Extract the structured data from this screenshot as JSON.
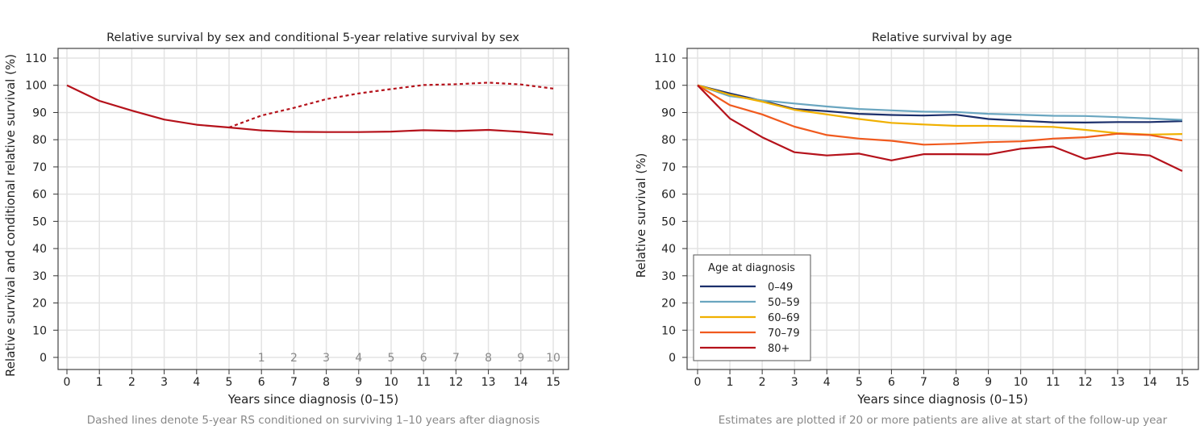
{
  "chart_data": [
    {
      "type": "line",
      "title": "Relative survival by sex and conditional 5-year relative survival by sex",
      "xlabel": "Years since diagnosis (0–15)",
      "ylabel": "Relative survival and conditional relative survival (%)",
      "note": "Dashed lines denote 5-year RS conditioned on surviving 1–10 years after diagnosis",
      "xlim": [
        0,
        15
      ],
      "ylim": [
        0,
        110
      ],
      "xticks": [
        0,
        1,
        2,
        3,
        4,
        5,
        6,
        7,
        8,
        9,
        10,
        11,
        12,
        13,
        14,
        15
      ],
      "yticks": [
        0,
        10,
        20,
        30,
        40,
        50,
        60,
        70,
        80,
        90,
        100,
        110
      ],
      "secondary_xtick_labels": {
        "x": [
          6,
          7,
          8,
          9,
          10,
          11,
          12,
          13,
          14,
          15
        ],
        "labels": [
          "1",
          "2",
          "3",
          "4",
          "5",
          "6",
          "7",
          "8",
          "9",
          "10"
        ]
      },
      "grid": true,
      "series": [
        {
          "style": "solid",
          "color": "#b5121b",
          "x": [
            0,
            1,
            2,
            3,
            4,
            5,
            6,
            7,
            8,
            9,
            10,
            11,
            12,
            13,
            14,
            15
          ],
          "y": [
            100,
            94.3,
            90.7,
            87.4,
            85.5,
            84.5,
            83.4,
            82.9,
            82.8,
            82.8,
            83.0,
            83.5,
            83.2,
            83.6,
            82.9,
            81.9
          ]
        },
        {
          "style": "dashed",
          "color": "#b5121b",
          "x": [
            5,
            6,
            7,
            8,
            9,
            10,
            11,
            12,
            13,
            14,
            15
          ],
          "y": [
            84.5,
            88.9,
            91.7,
            94.9,
            97.0,
            98.6,
            100.1,
            100.4,
            101.0,
            100.3,
            98.8
          ]
        }
      ]
    },
    {
      "type": "line",
      "title": "Relative survival by age",
      "xlabel": "Years since diagnosis (0–15)",
      "ylabel": "Relative survival (%)",
      "note": "Estimates are plotted if 20 or more patients are alive at start of the follow-up year",
      "xlim": [
        0,
        15
      ],
      "ylim": [
        0,
        110
      ],
      "xticks": [
        0,
        1,
        2,
        3,
        4,
        5,
        6,
        7,
        8,
        9,
        10,
        11,
        12,
        13,
        14,
        15
      ],
      "yticks": [
        0,
        10,
        20,
        30,
        40,
        50,
        60,
        70,
        80,
        90,
        100,
        110
      ],
      "grid": true,
      "legend": {
        "title": "Age at diagnosis",
        "placement": "bottom-left"
      },
      "x": [
        0,
        1,
        2,
        3,
        4,
        5,
        6,
        7,
        8,
        9,
        10,
        11,
        12,
        13,
        14,
        15
      ],
      "series": [
        {
          "name": "0–49",
          "color": "#1b2f6b",
          "y": [
            100,
            97.0,
            94.3,
            91.3,
            90.5,
            89.5,
            89.1,
            88.9,
            89.2,
            87.6,
            87.0,
            86.4,
            86.3,
            86.5,
            86.5,
            86.8
          ]
        },
        {
          "name": "50–59",
          "color": "#6aa6c0",
          "y": [
            100,
            96.0,
            94.5,
            93.3,
            92.2,
            91.3,
            90.8,
            90.3,
            90.2,
            89.5,
            89.2,
            88.8,
            88.7,
            88.3,
            87.8,
            87.3
          ]
        },
        {
          "name": "60–69",
          "color": "#f0b000",
          "y": [
            100,
            96.5,
            94.0,
            91.0,
            89.3,
            87.6,
            86.2,
            85.6,
            85.1,
            85.1,
            84.9,
            84.7,
            83.6,
            82.4,
            81.9,
            82.1
          ]
        },
        {
          "name": "70–79",
          "color": "#f05a1e",
          "y": [
            100,
            92.7,
            89.3,
            84.8,
            81.7,
            80.4,
            79.6,
            78.2,
            78.5,
            79.1,
            79.4,
            80.4,
            80.9,
            82.2,
            81.7,
            79.7
          ]
        },
        {
          "name": "80+",
          "color": "#b5121b",
          "y": [
            100,
            87.8,
            80.9,
            75.4,
            74.2,
            74.9,
            72.4,
            74.7,
            74.7,
            74.6,
            76.7,
            77.5,
            72.9,
            75.1,
            74.2,
            68.5
          ]
        }
      ]
    }
  ]
}
